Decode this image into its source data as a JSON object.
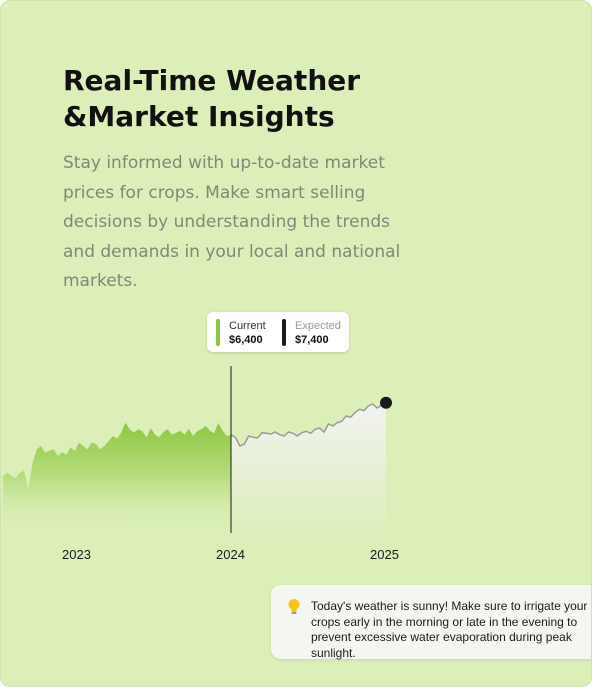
{
  "heading": {
    "line1": "Real-Time Weather",
    "line2": "&Market Insights"
  },
  "description": "Stay informed with up-to-date market prices for crops. Make smart selling decisions by understanding the trends and demands in your local and national markets.",
  "tooltip": {
    "current_label": "Current",
    "current_value": "$6,400",
    "expected_label": "Expected",
    "expected_value": "$7,400"
  },
  "chart_data": {
    "type": "area",
    "x_labels": [
      "2023",
      "2024",
      "2025"
    ],
    "series": [
      {
        "name": "Current",
        "color": "#8cc63f",
        "values": [
          4900,
          4950,
          4900,
          4870,
          4950,
          4980,
          4700,
          5100,
          5300,
          5350,
          5250,
          5280,
          5300,
          5200,
          5260,
          5220,
          5330,
          5280,
          5400,
          5350,
          5300,
          5400,
          5380,
          5300,
          5350,
          5420,
          5500,
          5460,
          5550,
          5700,
          5600,
          5550,
          5600,
          5570,
          5480,
          5620,
          5520,
          5480,
          5560,
          5600,
          5520,
          5550,
          5580,
          5520,
          5610,
          5500,
          5570,
          5600,
          5650,
          5580,
          5540,
          5700,
          5580,
          5500,
          5520
        ]
      },
      {
        "name": "Expected",
        "color": "#9a9a9a",
        "values": [
          5520,
          5480,
          5350,
          5380,
          5500,
          5480,
          5470,
          5550,
          5540,
          5530,
          5560,
          5520,
          5500,
          5560,
          5540,
          5500,
          5550,
          5570,
          5540,
          5600,
          5620,
          5560,
          5680,
          5650,
          5700,
          5720,
          5800,
          5780,
          5850,
          5900,
          5880,
          5950,
          5980,
          5920,
          5960,
          6000
        ]
      }
    ],
    "current_value": 6400,
    "expected_value": 7400
  },
  "notice": {
    "icon": "lightbulb-icon",
    "text": "Today's weather is sunny! Make sure to irrigate your crops early in the morning or late in the evening to prevent excessive water evaporation during peak sunlight."
  },
  "colors": {
    "background": "#dcefb9",
    "accent": "#8cc63f",
    "muted_text": "#7d8a78"
  }
}
